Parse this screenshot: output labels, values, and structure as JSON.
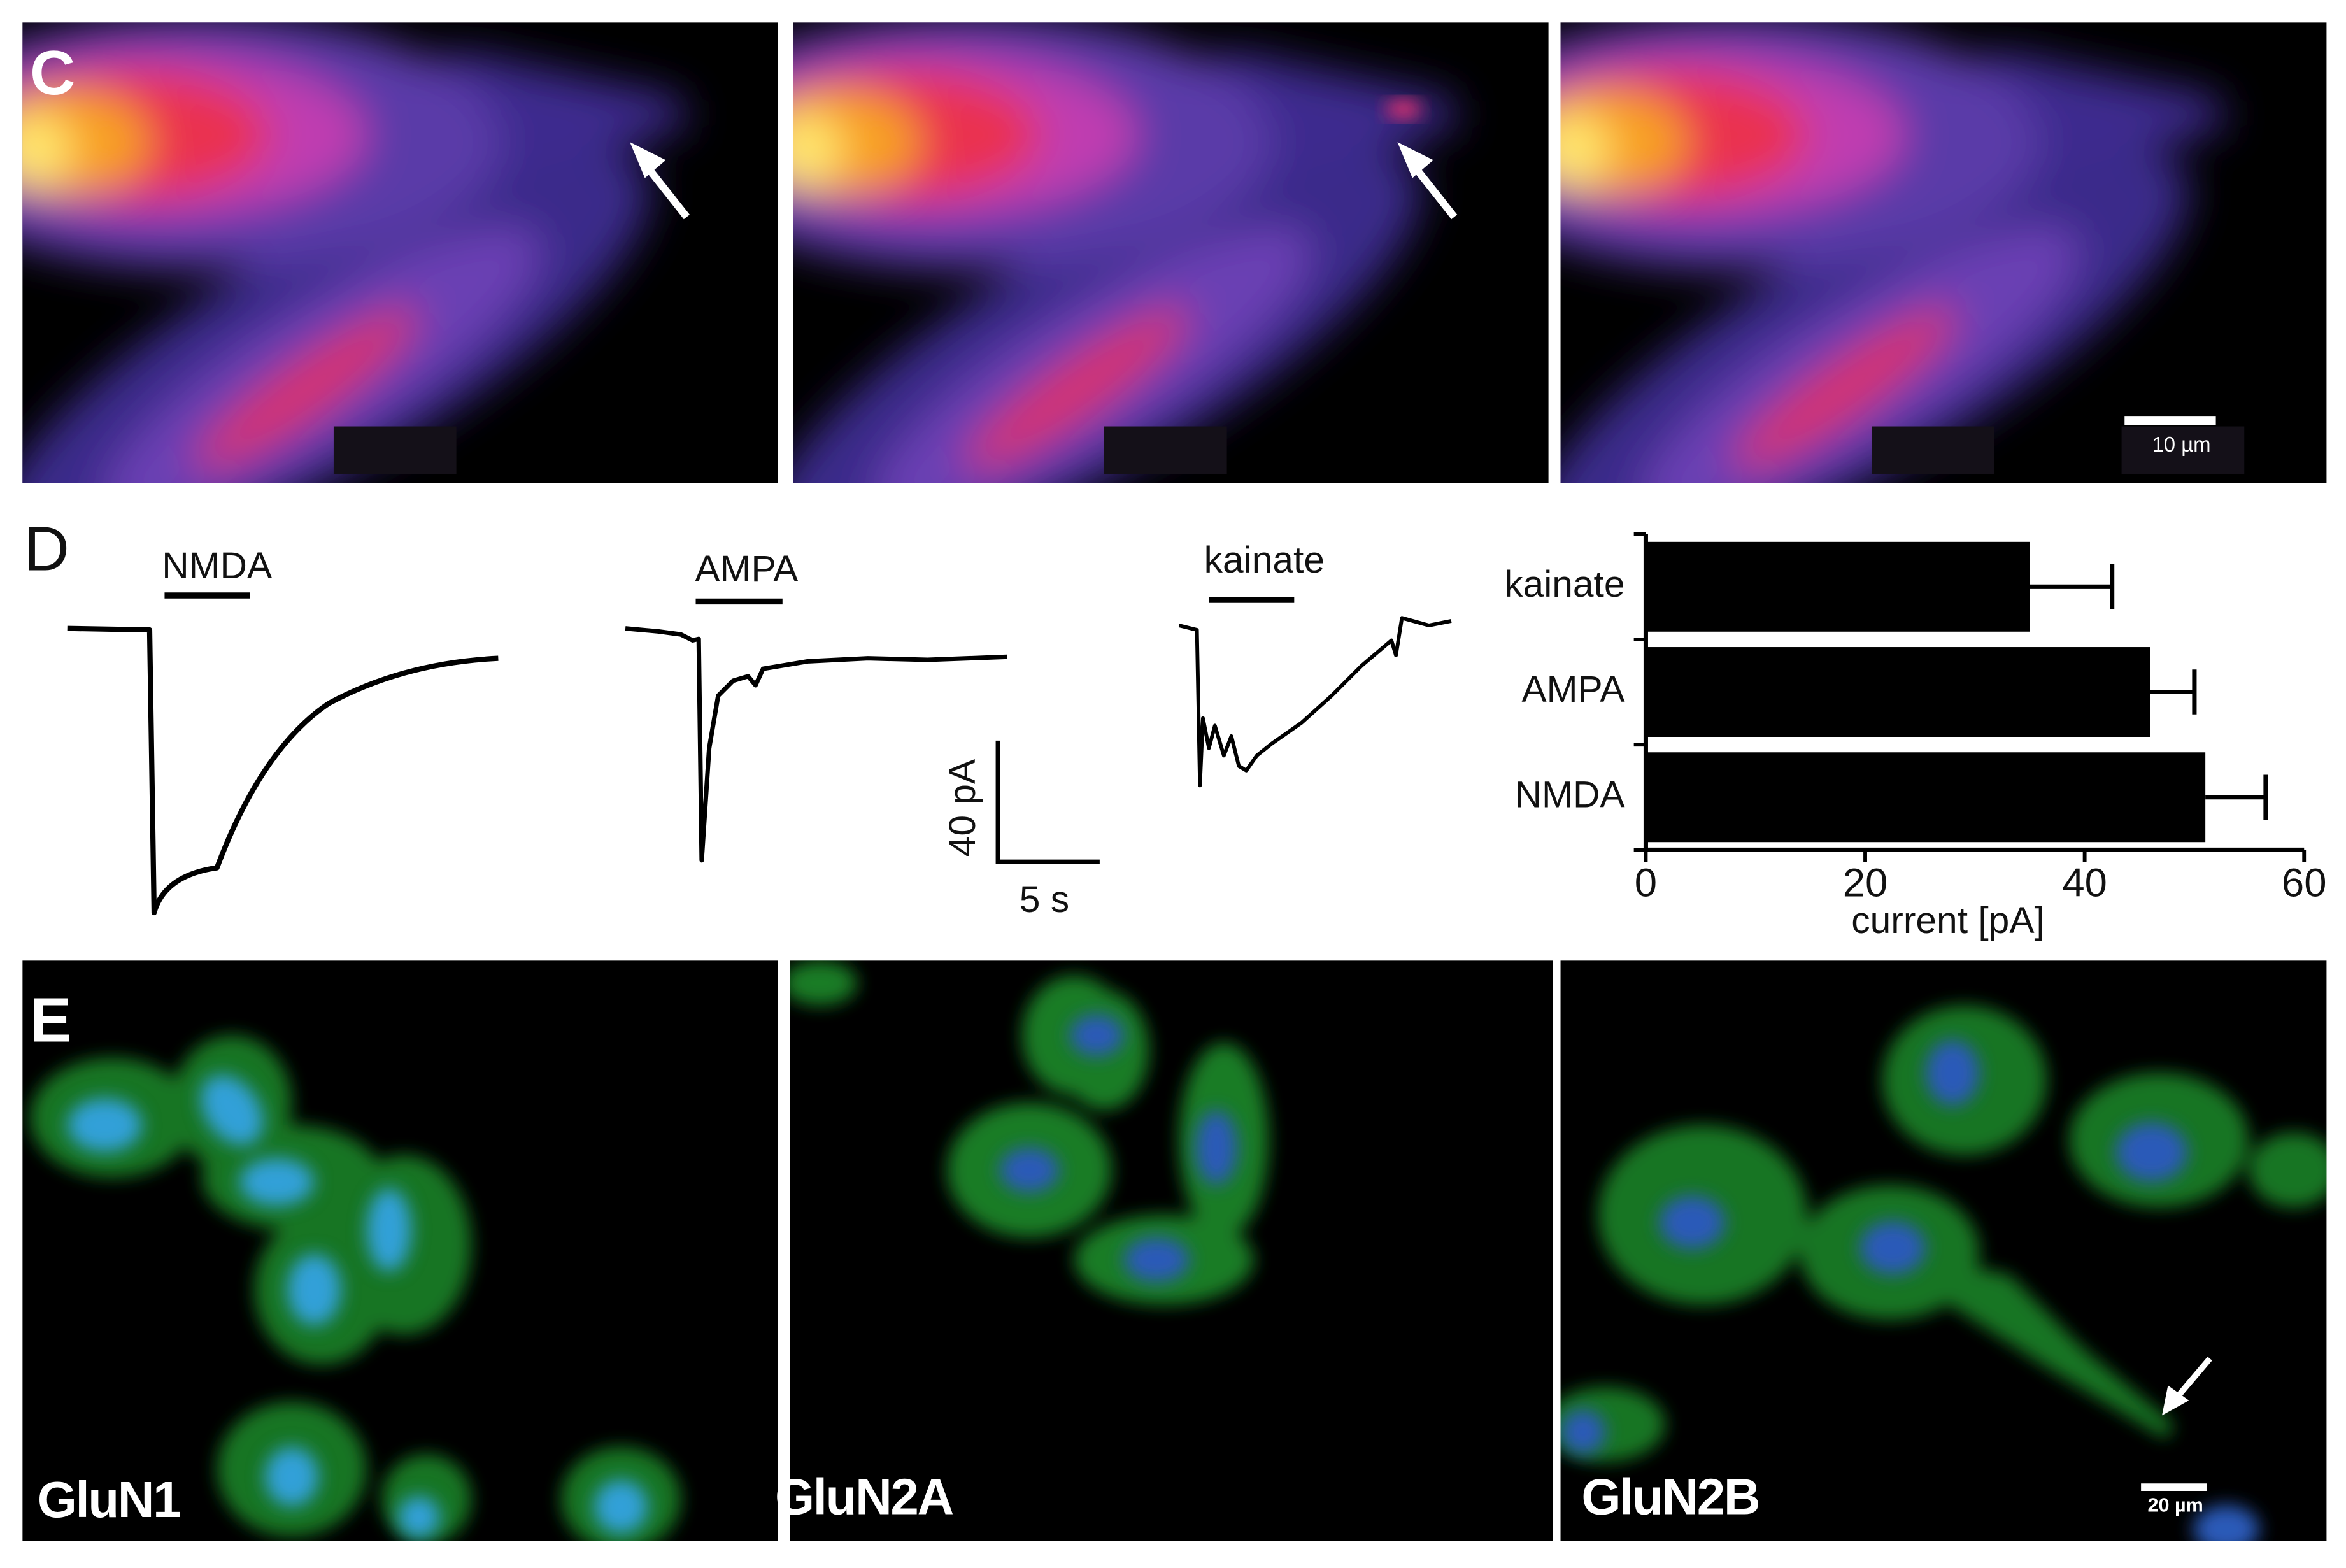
{
  "panel_c": {
    "label": "C",
    "scale_bar": "10 µm"
  },
  "panel_d": {
    "label": "D",
    "traces": [
      "NMDA",
      "AMPA",
      "kainate"
    ],
    "scale_y": "40 pA",
    "scale_x": "5 s"
  },
  "panel_e": {
    "label": "E",
    "images": [
      "GluN1",
      "GluN2A",
      "GluN2B"
    ],
    "scale_bar": "20 µm"
  },
  "chart_data": {
    "type": "hbar",
    "categories": [
      "kainate",
      "AMPA",
      "NMDA"
    ],
    "values": [
      35,
      46,
      51
    ],
    "errors": [
      7.5,
      4,
      5.5
    ],
    "color": "#000000",
    "xlim": [
      0,
      60
    ],
    "xticks": [
      0,
      20,
      40,
      60
    ],
    "xlabel": "current [pA]"
  }
}
